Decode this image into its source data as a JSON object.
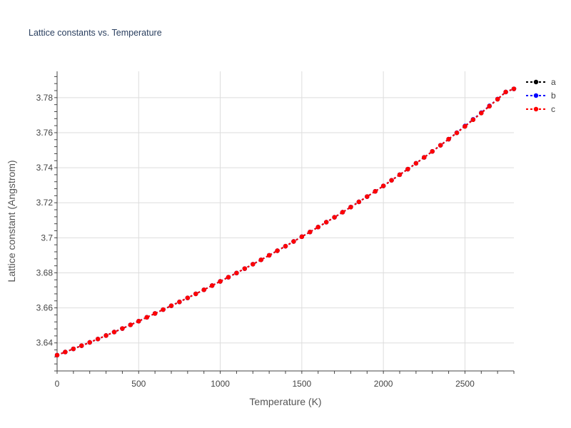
{
  "chart_data": {
    "type": "line",
    "title": "Lattice constants vs. Temperature",
    "xlabel": "Temperature (K)",
    "ylabel": "Lattice constant (Angstrom)",
    "xlim": [
      0,
      2800
    ],
    "ylim": [
      3.624,
      3.795
    ],
    "x_ticks": [
      0,
      500,
      1000,
      1500,
      2000,
      2500
    ],
    "x_tick_labels": [
      "0",
      "500",
      "1000",
      "1500",
      "2000",
      "2500"
    ],
    "y_ticks": [
      3.64,
      3.66,
      3.68,
      3.7,
      3.72,
      3.74,
      3.76,
      3.78
    ],
    "y_tick_labels": [
      "3.64",
      "3.66",
      "3.68",
      "3.7",
      "3.72",
      "3.74",
      "3.76",
      "3.78"
    ],
    "grid": true,
    "legend_position": "top-right",
    "x": [
      0,
      50,
      100,
      150,
      200,
      250,
      300,
      350,
      400,
      450,
      500,
      550,
      600,
      650,
      700,
      750,
      800,
      850,
      900,
      950,
      1000,
      1050,
      1100,
      1150,
      1200,
      1250,
      1300,
      1350,
      1400,
      1450,
      1500,
      1550,
      1600,
      1650,
      1700,
      1750,
      1800,
      1850,
      1900,
      1950,
      2000,
      2050,
      2100,
      2150,
      2200,
      2250,
      2300,
      2350,
      2400,
      2450,
      2500,
      2550,
      2600,
      2650,
      2700,
      2750,
      2800
    ],
    "series": [
      {
        "name": "a",
        "color": "#000000",
        "values": [
          3.633,
          3.6348,
          3.6366,
          3.6384,
          3.6403,
          3.6422,
          3.6442,
          3.6462,
          3.6482,
          3.6503,
          3.6524,
          3.6546,
          3.6568,
          3.659,
          3.6612,
          3.6634,
          3.6657,
          3.668,
          3.6703,
          3.6727,
          3.6751,
          3.6775,
          3.6799,
          3.6824,
          3.6849,
          3.6874,
          3.69,
          3.6926,
          3.6952,
          3.6979,
          3.7006,
          3.7033,
          3.7061,
          3.7089,
          3.7117,
          3.7146,
          3.7175,
          3.7205,
          3.7235,
          3.7265,
          3.7296,
          3.7328,
          3.736,
          3.7392,
          3.7425,
          3.7459,
          3.7493,
          3.7528,
          3.7563,
          3.7599,
          3.7636,
          3.7674,
          3.7712,
          3.7751,
          3.7791,
          3.7832,
          3.785
        ]
      },
      {
        "name": "b",
        "color": "#0000ff",
        "values": [
          3.633,
          3.6348,
          3.6366,
          3.6384,
          3.6403,
          3.6422,
          3.6442,
          3.6462,
          3.6482,
          3.6503,
          3.6524,
          3.6546,
          3.6568,
          3.659,
          3.6612,
          3.6634,
          3.6657,
          3.668,
          3.6703,
          3.6727,
          3.6751,
          3.6775,
          3.6799,
          3.6824,
          3.6849,
          3.6874,
          3.69,
          3.6926,
          3.6952,
          3.6979,
          3.7006,
          3.7033,
          3.7061,
          3.7089,
          3.7117,
          3.7146,
          3.7175,
          3.7205,
          3.7235,
          3.7265,
          3.7296,
          3.7328,
          3.736,
          3.7392,
          3.7425,
          3.7459,
          3.7493,
          3.7528,
          3.7563,
          3.76,
          3.7638,
          3.7676,
          3.7714,
          3.7753,
          3.7792,
          3.7832,
          3.785
        ]
      },
      {
        "name": "c",
        "color": "#ff0000",
        "values": [
          3.633,
          3.6348,
          3.6366,
          3.6384,
          3.6403,
          3.6422,
          3.6442,
          3.6462,
          3.6482,
          3.6503,
          3.6524,
          3.6546,
          3.6568,
          3.659,
          3.6612,
          3.6634,
          3.6657,
          3.668,
          3.6703,
          3.6727,
          3.6751,
          3.6775,
          3.6799,
          3.6824,
          3.6849,
          3.6874,
          3.69,
          3.6926,
          3.6952,
          3.6979,
          3.7006,
          3.7033,
          3.7061,
          3.7089,
          3.7117,
          3.7146,
          3.7175,
          3.7205,
          3.7235,
          3.7265,
          3.7296,
          3.7328,
          3.736,
          3.7392,
          3.7425,
          3.7459,
          3.7493,
          3.7528,
          3.7563,
          3.7599,
          3.7636,
          3.7674,
          3.7712,
          3.7751,
          3.7791,
          3.7832,
          3.785
        ]
      }
    ]
  }
}
